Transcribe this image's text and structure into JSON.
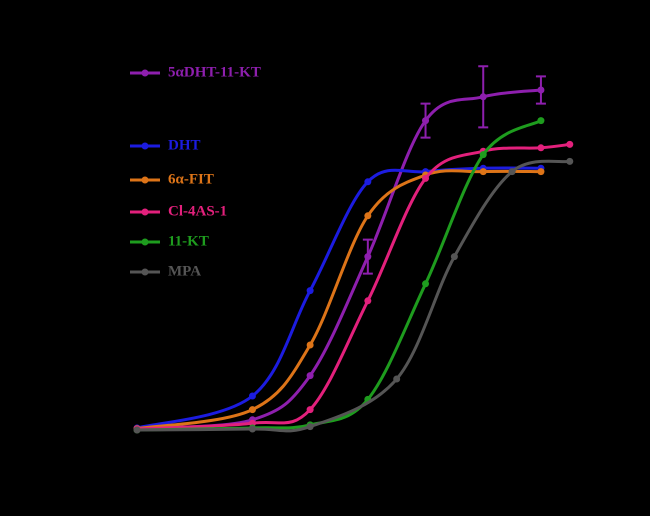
{
  "chart_data": {
    "type": "line",
    "xlim": [
      -12.2,
      -3.9
    ],
    "ylim": [
      0,
      110
    ],
    "series": [
      {
        "name": "5αDHT-11-KT",
        "color": "#8e1fae",
        "x": [
          -12,
          -10,
          -9,
          -8,
          -7,
          -6,
          -5
        ],
        "values": [
          0.5,
          3,
          16,
          51,
          91,
          98,
          100
        ],
        "errors": [
          0,
          0,
          0,
          5,
          5,
          9,
          4
        ]
      },
      {
        "name": "DHT",
        "color": "#1c1ce0",
        "x": [
          -12,
          -10,
          -9,
          -8,
          -7,
          -6,
          -5
        ],
        "values": [
          0.6,
          10,
          41,
          73,
          76,
          77,
          77
        ]
      },
      {
        "name": "6α-FIT",
        "color": "#dd7418",
        "x": [
          -12,
          -10,
          -9,
          -8,
          -7,
          -6,
          -5
        ],
        "values": [
          0.4,
          6,
          25,
          63,
          75,
          76,
          76
        ]
      },
      {
        "name": "Cl-4AS-1",
        "color": "#e3207c",
        "x": [
          -12,
          -10,
          -9,
          -8,
          -7,
          -6,
          -5,
          -4.5
        ],
        "values": [
          0.3,
          2,
          6,
          38,
          74,
          82,
          83,
          84
        ]
      },
      {
        "name": "11-KT",
        "color": "#1e9c1e",
        "x": [
          -12,
          -10,
          -9,
          -8,
          -7,
          -6,
          -5
        ],
        "values": [
          0,
          0.6,
          1.5,
          9,
          43,
          81,
          91
        ]
      },
      {
        "name": "MPA",
        "color": "#555555",
        "x": [
          -12,
          -10,
          -9,
          -7.5,
          -6.5,
          -5.5,
          -4.5
        ],
        "values": [
          0,
          0.3,
          1,
          15,
          51,
          76,
          79
        ]
      }
    ]
  }
}
